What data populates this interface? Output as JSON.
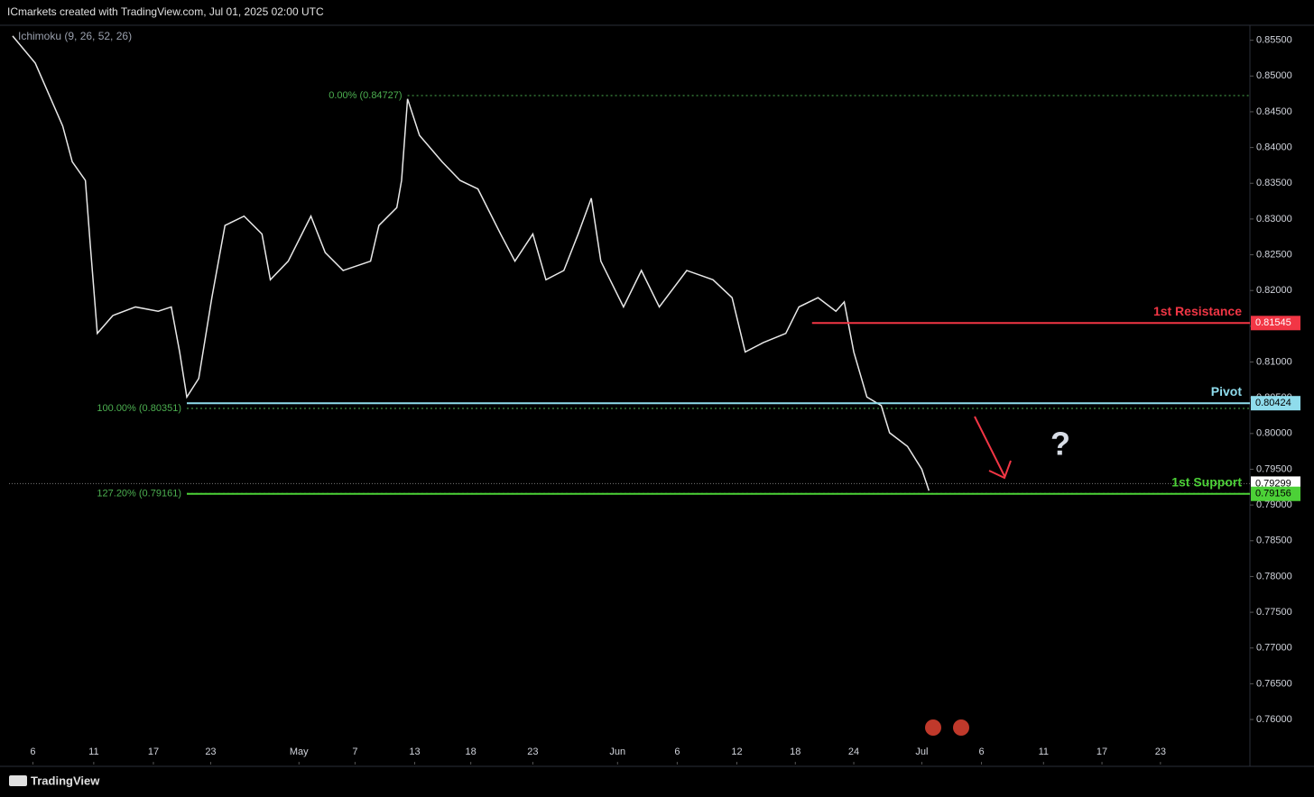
{
  "header": "ICmarkets created with TradingView.com, Jul 01, 2025 02:00 UTC",
  "indicator": "Ichimoku (9, 26, 52, 26)",
  "footer": "TradingView",
  "chart_data": {
    "type": "line",
    "xlim": [
      -2,
      102
    ],
    "ylim": [
      0.7537,
      0.8571
    ],
    "grid": false,
    "xticks": [
      {
        "value": 0,
        "label": "6"
      },
      {
        "value": 5.1,
        "label": "11"
      },
      {
        "value": 10.1,
        "label": "17"
      },
      {
        "value": 14.9,
        "label": "23"
      },
      {
        "value": 22.3,
        "label": "May"
      },
      {
        "value": 27,
        "label": "7"
      },
      {
        "value": 32,
        "label": "13"
      },
      {
        "value": 36.7,
        "label": "18"
      },
      {
        "value": 41.9,
        "label": "23"
      },
      {
        "value": 49,
        "label": "Jun"
      },
      {
        "value": 54,
        "label": "6"
      },
      {
        "value": 59,
        "label": "12"
      },
      {
        "value": 63.9,
        "label": "18"
      },
      {
        "value": 68.8,
        "label": "24"
      },
      {
        "value": 74.5,
        "label": "Jul"
      },
      {
        "value": 79.5,
        "label": "6"
      },
      {
        "value": 84.7,
        "label": "11"
      },
      {
        "value": 89.6,
        "label": "17"
      },
      {
        "value": 94.5,
        "label": "23"
      }
    ],
    "yticks": [
      {
        "value": 0.855,
        "label": "0.85500"
      },
      {
        "value": 0.85,
        "label": "0.85000"
      },
      {
        "value": 0.845,
        "label": "0.84500"
      },
      {
        "value": 0.84,
        "label": "0.84000"
      },
      {
        "value": 0.835,
        "label": "0.83500"
      },
      {
        "value": 0.83,
        "label": "0.83000"
      },
      {
        "value": 0.825,
        "label": "0.82500"
      },
      {
        "value": 0.82,
        "label": "0.82000"
      },
      {
        "value": 0.815,
        "label": "0.81500"
      },
      {
        "value": 0.81,
        "label": "0.81000"
      },
      {
        "value": 0.805,
        "label": "0.80500"
      },
      {
        "value": 0.8,
        "label": "0.80000"
      },
      {
        "value": 0.795,
        "label": "0.79500"
      },
      {
        "value": 0.79,
        "label": "0.79000"
      },
      {
        "value": 0.785,
        "label": "0.78500"
      },
      {
        "value": 0.78,
        "label": "0.78000"
      },
      {
        "value": 0.775,
        "label": "0.77500"
      },
      {
        "value": 0.77,
        "label": "0.77000"
      },
      {
        "value": 0.765,
        "label": "0.76500"
      },
      {
        "value": 0.76,
        "label": "0.76000"
      }
    ],
    "series": [
      {
        "name": "Price",
        "color": "#e8e8e8",
        "x": [
          -1.7,
          0.2,
          2.5,
          3.3,
          4.4,
          4.8,
          5.4,
          6.7,
          8.6,
          10.5,
          11.6,
          12.3,
          12.9,
          13.9,
          15.0,
          16.1,
          17.7,
          19.2,
          19.9,
          21.4,
          23.3,
          24.5,
          26.0,
          28.3,
          29.0,
          30.5,
          30.9,
          31.4,
          32.4,
          34.3,
          35.8,
          37.3,
          39.2,
          40.4,
          41.9,
          43.0,
          44.5,
          45.7,
          46.8,
          47.6,
          49.5,
          51.0,
          52.5,
          54.8,
          57.0,
          58.6,
          59.7,
          61.2,
          63.1,
          64.2,
          65.8,
          67.3,
          68.0,
          68.8,
          69.9,
          71.1,
          71.8,
          73.3,
          74.5,
          75.1
        ],
        "values": [
          0.8556,
          0.8518,
          0.843,
          0.838,
          0.8354,
          0.8266,
          0.814,
          0.8165,
          0.8177,
          0.8171,
          0.8177,
          0.8114,
          0.8051,
          0.8077,
          0.819,
          0.8291,
          0.8304,
          0.8279,
          0.8215,
          0.8241,
          0.8304,
          0.8253,
          0.8228,
          0.8241,
          0.8291,
          0.8316,
          0.8354,
          0.8468,
          0.8417,
          0.838,
          0.8354,
          0.8342,
          0.8279,
          0.8241,
          0.8279,
          0.8215,
          0.8228,
          0.8279,
          0.8329,
          0.8241,
          0.8177,
          0.8228,
          0.8177,
          0.8228,
          0.8215,
          0.819,
          0.8114,
          0.8127,
          0.814,
          0.8177,
          0.819,
          0.8171,
          0.8184,
          0.8114,
          0.8051,
          0.8039,
          0.8001,
          0.7982,
          0.795,
          0.792
        ]
      }
    ],
    "levels": [
      {
        "name": "1st Resistance",
        "value": 0.81545,
        "from": 65.3,
        "color": "#f23645"
      },
      {
        "name": "Pivot",
        "value": 0.80424,
        "from": 12.9,
        "color": "#8fdcec"
      },
      {
        "name": "1st Support",
        "value": 0.79156,
        "from": 12.9,
        "color": "#4cd137"
      }
    ],
    "current_price": 0.79299,
    "fib_levels": [
      {
        "label": "0.00% (0.84727)",
        "value": 0.84727,
        "from": 31.4
      },
      {
        "label": "100.00% (0.80351)",
        "value": 0.80351,
        "from": 12.9
      },
      {
        "label": "127.20% (0.79161)",
        "value": 0.79161,
        "from": 12.9
      }
    ],
    "fib_color": "#4caf50",
    "annotation": "?"
  }
}
